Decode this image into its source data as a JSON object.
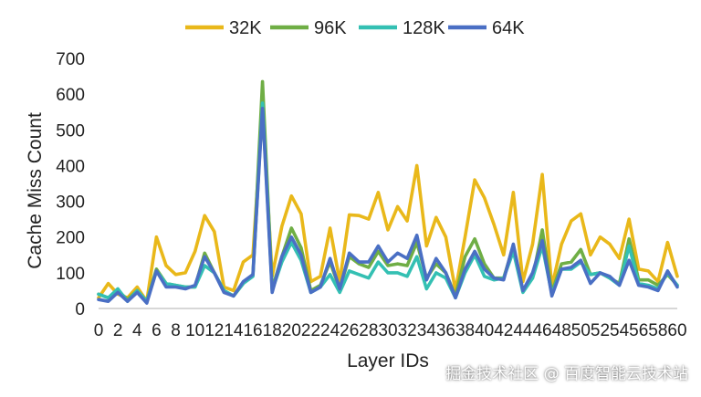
{
  "chart_data": {
    "type": "line",
    "xlabel": "Layer IDs",
    "ylabel": "Cache Miss Count",
    "ylim": [
      0,
      700
    ],
    "xlim": [
      0,
      60
    ],
    "y_ticks": [
      "0",
      "100",
      "200",
      "300",
      "400",
      "500",
      "600",
      "700"
    ],
    "x_ticks": [
      "0",
      "4",
      "8",
      "12",
      "16",
      "20",
      "24",
      "28",
      "32",
      "36",
      "40",
      "44",
      "48",
      "52",
      "56",
      "60"
    ],
    "x_tick_values": [
      0,
      4,
      8,
      12,
      16,
      20,
      24,
      28,
      32,
      36,
      40,
      44,
      48,
      52,
      56,
      60
    ],
    "x_tick_labels_extra": [
      "2",
      "6",
      "10",
      "14",
      "18",
      "22",
      "26",
      "30",
      "34",
      "38",
      "42",
      "46",
      "50",
      "54",
      "58"
    ],
    "x_tick_values_extra": [
      2,
      6,
      10,
      14,
      18,
      22,
      26,
      30,
      34,
      38,
      42,
      46,
      50,
      54,
      58
    ],
    "grid": false,
    "legend_position": "top",
    "x": [
      0,
      1,
      2,
      3,
      4,
      5,
      6,
      7,
      8,
      9,
      10,
      11,
      12,
      13,
      14,
      15,
      16,
      17,
      18,
      19,
      20,
      21,
      22,
      23,
      24,
      25,
      26,
      27,
      28,
      29,
      30,
      31,
      32,
      33,
      34,
      35,
      36,
      37,
      38,
      39,
      40,
      41,
      42,
      43,
      44,
      45,
      46,
      47,
      48,
      49,
      50,
      51,
      52,
      53,
      54,
      55,
      56,
      57,
      58,
      59,
      60
    ],
    "series": [
      {
        "name": "32K",
        "color": "#E9B81A",
        "values": [
          30,
          70,
          40,
          30,
          60,
          20,
          200,
          120,
          95,
          100,
          160,
          260,
          215,
          60,
          50,
          130,
          150,
          560,
          90,
          230,
          315,
          265,
          75,
          90,
          225,
          75,
          262,
          260,
          250,
          325,
          220,
          285,
          245,
          400,
          175,
          255,
          200,
          50,
          200,
          360,
          310,
          235,
          150,
          325,
          75,
          180,
          375,
          60,
          180,
          245,
          265,
          150,
          200,
          180,
          140,
          250,
          110,
          105,
          75,
          185,
          90
        ]
      },
      {
        "name": "96K",
        "color": "#6FAE45",
        "values": [
          40,
          30,
          50,
          25,
          50,
          20,
          110,
          70,
          65,
          60,
          60,
          155,
          100,
          50,
          35,
          70,
          95,
          635,
          55,
          145,
          225,
          170,
          50,
          65,
          130,
          55,
          145,
          125,
          115,
          160,
          120,
          125,
          120,
          185,
          85,
          125,
          100,
          35,
          145,
          195,
          125,
          85,
          85,
          175,
          50,
          85,
          220,
          45,
          125,
          130,
          165,
          95,
          100,
          85,
          70,
          195,
          80,
          80,
          65,
          95,
          65
        ]
      },
      {
        "name": "128K",
        "color": "#34C0B3",
        "values": [
          40,
          30,
          55,
          20,
          50,
          20,
          105,
          70,
          65,
          60,
          60,
          120,
          100,
          50,
          35,
          70,
          90,
          575,
          50,
          130,
          185,
          135,
          45,
          60,
          95,
          45,
          105,
          95,
          85,
          130,
          100,
          100,
          90,
          145,
          55,
          100,
          85,
          30,
          100,
          150,
          90,
          80,
          85,
          160,
          45,
          85,
          175,
          40,
          110,
          110,
          130,
          95,
          100,
          85,
          65,
          175,
          70,
          65,
          55,
          100,
          65
        ]
      },
      {
        "name": "64K",
        "color": "#4A6FC4",
        "values": [
          25,
          20,
          45,
          20,
          45,
          15,
          105,
          60,
          60,
          55,
          65,
          145,
          100,
          45,
          35,
          75,
          95,
          560,
          45,
          145,
          200,
          150,
          45,
          60,
          140,
          55,
          155,
          130,
          130,
          175,
          130,
          155,
          140,
          205,
          80,
          140,
          100,
          30,
          110,
          160,
          110,
          85,
          80,
          180,
          50,
          100,
          190,
          35,
          110,
          115,
          135,
          70,
          100,
          90,
          65,
          135,
          65,
          60,
          50,
          105,
          60
        ]
      }
    ]
  },
  "watermark": "掘金技术社区 @ 百度智能云技术站"
}
